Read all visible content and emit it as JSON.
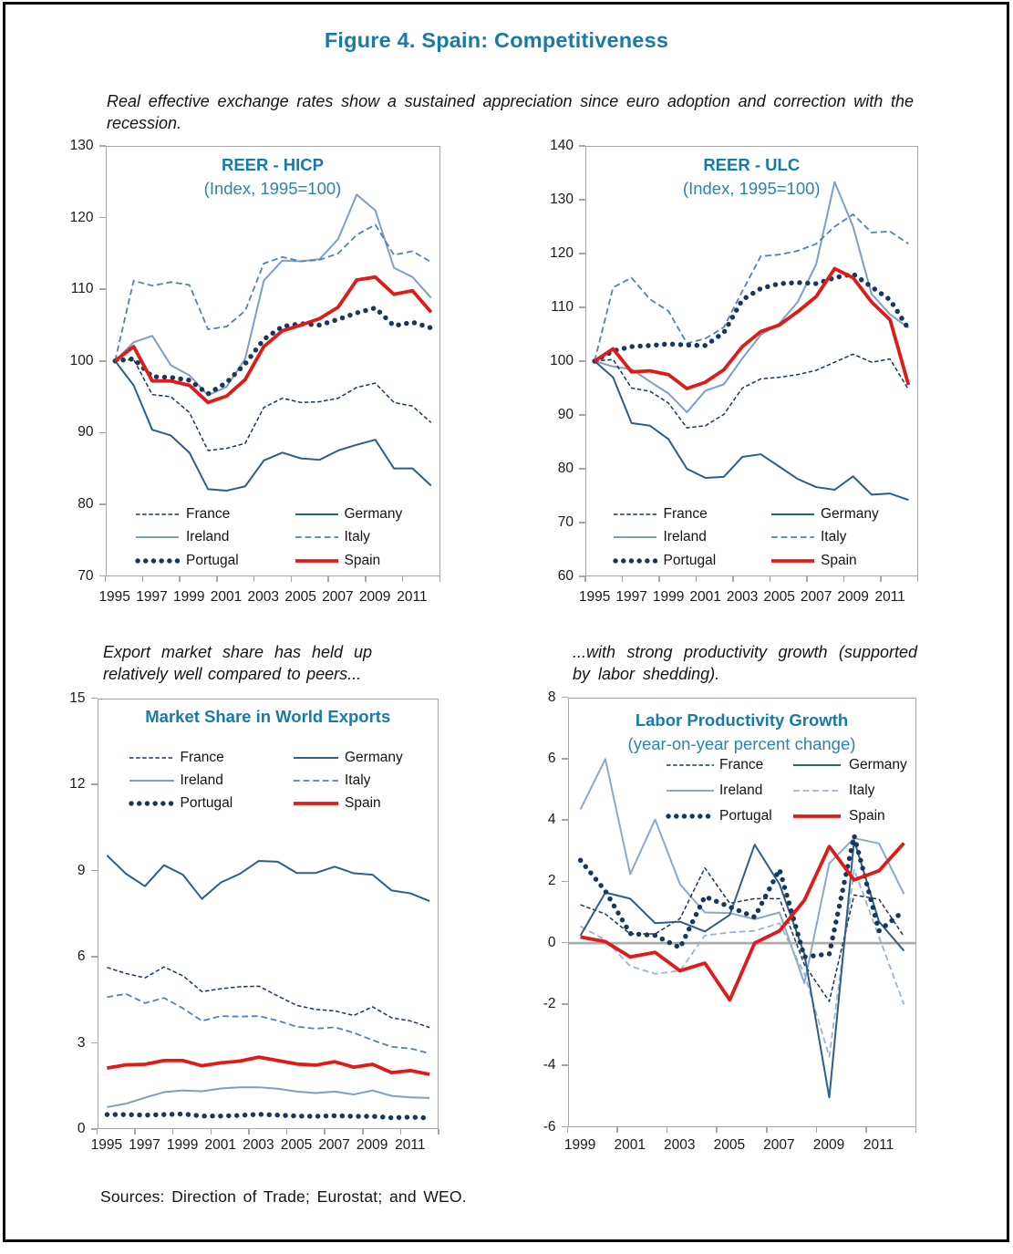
{
  "page": {
    "title": "Figure 4. Spain: Competitiveness",
    "captions": {
      "top": "Real effective exchange rates show a sustained appreciation since euro adoption and correction with the recession.",
      "exports": "Export market share has held up relatively well compared to peers...",
      "productivity": "...with strong productivity growth (supported by labor shedding)."
    },
    "sources": "Sources: Direction of Trade; Eurostat; and WEO.",
    "accent_color": "#187aa9",
    "frame_color": "#a6a6a6",
    "border_color": "#0a0a0a"
  },
  "legend_order": [
    "France",
    "Germany",
    "Ireland",
    "Italy",
    "Portugal",
    "Spain"
  ],
  "chart_data": [
    {
      "type": "line",
      "title": "REER - HICP",
      "subtitle": "(Index, 1995=100)",
      "x": [
        1995,
        1996,
        1997,
        1998,
        1999,
        2000,
        2001,
        2002,
        2003,
        2004,
        2005,
        2006,
        2007,
        2008,
        2009,
        2010,
        2011,
        2012
      ],
      "xtick_labels": [
        "1995",
        "1997",
        "1999",
        "2001",
        "2003",
        "2005",
        "2007",
        "2009",
        "2011"
      ],
      "ylim": [
        70,
        130
      ],
      "ytick_step": 10,
      "grid": false,
      "legend_position": "inside-bottom",
      "series": [
        {
          "name": "France",
          "color": "#17375e",
          "style": "fine-dash",
          "width": 1.5,
          "values": [
            100,
            100.2,
            95.3,
            95.0,
            92.8,
            87.5,
            87.8,
            88.5,
            93.5,
            94.8,
            94.2,
            94.3,
            94.8,
            96.3,
            96.9,
            94.2,
            93.7,
            91.4
          ]
        },
        {
          "name": "Germany",
          "color": "#2c5f88",
          "style": "solid",
          "width": 2,
          "values": [
            100,
            96.6,
            90.4,
            89.6,
            87.2,
            82.1,
            81.9,
            82.5,
            86.1,
            87.2,
            86.4,
            86.2,
            87.5,
            88.3,
            89.0,
            85.0,
            85.0,
            82.6
          ]
        },
        {
          "name": "Ireland",
          "color": "#7f9fc1",
          "style": "solid",
          "width": 2,
          "values": [
            100,
            102.6,
            103.5,
            99.4,
            98.0,
            95.2,
            96.4,
            100.3,
            111.2,
            114.0,
            113.9,
            114.2,
            117.0,
            123.2,
            121.0,
            113.0,
            111.7,
            108.8
          ]
        },
        {
          "name": "Italy",
          "color": "#4f81bd",
          "style": "dash",
          "width": 1.8,
          "values": [
            100,
            111.2,
            110.5,
            111.0,
            110.6,
            104.4,
            104.8,
            107.0,
            113.6,
            114.5,
            113.9,
            114.1,
            115.0,
            117.6,
            119.0,
            114.8,
            115.3,
            113.8
          ]
        },
        {
          "name": "Portugal",
          "color": "#17375e",
          "style": "dot",
          "width": 5.4,
          "values": [
            100,
            100.3,
            97.8,
            97.7,
            97.3,
            95.4,
            97.0,
            99.6,
            103.0,
            104.8,
            105.2,
            105.0,
            105.8,
            106.7,
            107.4,
            104.9,
            105.4,
            104.6
          ]
        },
        {
          "name": "Spain",
          "color": "#e01a16",
          "style": "solid",
          "width": 3.8,
          "values": [
            100,
            102.0,
            97.2,
            97.2,
            96.6,
            94.2,
            95.1,
            97.4,
            102.0,
            104.2,
            105.0,
            105.9,
            107.5,
            111.3,
            111.7,
            109.3,
            109.8,
            106.8
          ]
        }
      ]
    },
    {
      "type": "line",
      "title": "REER - ULC",
      "subtitle": "(Index, 1995=100)",
      "x": [
        1995,
        1996,
        1997,
        1998,
        1999,
        2000,
        2001,
        2002,
        2003,
        2004,
        2005,
        2006,
        2007,
        2008,
        2009,
        2010,
        2011,
        2012
      ],
      "xtick_labels": [
        "1995",
        "1997",
        "1999",
        "2001",
        "2003",
        "2005",
        "2007",
        "2009",
        "2011"
      ],
      "ylim": [
        60,
        140
      ],
      "ytick_step": 10,
      "grid": false,
      "legend_position": "inside-bottom",
      "series": [
        {
          "name": "France",
          "color": "#17375e",
          "style": "fine-dash",
          "width": 1.5,
          "values": [
            100,
            100.3,
            95.0,
            94.4,
            92.2,
            87.6,
            88.0,
            90.1,
            95.0,
            96.7,
            97.0,
            97.5,
            98.3,
            99.8,
            101.3,
            99.8,
            100.4,
            94.7
          ]
        },
        {
          "name": "Germany",
          "color": "#2c5f88",
          "style": "solid",
          "width": 2,
          "values": [
            100,
            97.0,
            88.5,
            88.0,
            85.5,
            80.0,
            78.3,
            78.5,
            82.2,
            82.7,
            80.4,
            78.1,
            76.6,
            76.1,
            78.6,
            75.2,
            75.4,
            74.2
          ]
        },
        {
          "name": "Ireland",
          "color": "#7f9fc1",
          "style": "solid",
          "width": 2,
          "values": [
            100,
            99.0,
            98.5,
            96.2,
            94.0,
            90.5,
            94.5,
            95.7,
            100.5,
            104.9,
            107.0,
            111.0,
            118.0,
            133.3,
            125.0,
            112.5,
            108.7,
            106.2
          ]
        },
        {
          "name": "Italy",
          "color": "#4f81bd",
          "style": "dash",
          "width": 1.8,
          "values": [
            100,
            113.7,
            115.5,
            111.5,
            109.3,
            103.3,
            104.2,
            106.3,
            113.0,
            119.5,
            119.8,
            120.5,
            121.8,
            125.0,
            127.3,
            123.9,
            124.1,
            121.8
          ]
        },
        {
          "name": "Portugal",
          "color": "#17375e",
          "style": "dot",
          "width": 5.4,
          "values": [
            100,
            101.9,
            102.7,
            102.9,
            103.2,
            103.0,
            102.9,
            105.3,
            111.4,
            113.5,
            114.4,
            114.6,
            114.4,
            115.5,
            116.2,
            113.8,
            111.4,
            106.0
          ]
        },
        {
          "name": "Spain",
          "color": "#e01a16",
          "style": "solid",
          "width": 3.8,
          "values": [
            100,
            102.3,
            98.0,
            98.2,
            97.5,
            94.9,
            96.1,
            98.4,
            102.7,
            105.5,
            106.7,
            109.2,
            112.0,
            117.2,
            115.5,
            111.0,
            107.7,
            95.6
          ]
        }
      ]
    },
    {
      "type": "line",
      "title": "Market Share in World Exports",
      "subtitle": "",
      "x": [
        1995,
        1996,
        1997,
        1998,
        1999,
        2000,
        2001,
        2002,
        2003,
        2004,
        2005,
        2006,
        2007,
        2008,
        2009,
        2010,
        2011,
        2012
      ],
      "xtick_labels": [
        "1995",
        "1997",
        "1999",
        "2001",
        "2003",
        "2005",
        "2007",
        "2009",
        "2011"
      ],
      "ylim": [
        0,
        15
      ],
      "ytick_step": 3,
      "grid": false,
      "legend_position": "inside-top",
      "series": [
        {
          "name": "France",
          "color": "#17375e",
          "style": "fine-dash",
          "width": 1.5,
          "values": [
            5.64,
            5.43,
            5.28,
            5.66,
            5.35,
            4.8,
            4.9,
            4.97,
            4.99,
            4.65,
            4.32,
            4.18,
            4.13,
            3.97,
            4.27,
            3.89,
            3.78,
            3.55
          ]
        },
        {
          "name": "Germany",
          "color": "#2c5f88",
          "style": "solid",
          "width": 2,
          "values": [
            9.54,
            8.9,
            8.47,
            9.2,
            8.87,
            8.03,
            8.6,
            8.9,
            9.35,
            9.32,
            8.93,
            8.93,
            9.15,
            8.92,
            8.87,
            8.32,
            8.22,
            7.95
          ]
        },
        {
          "name": "Ireland",
          "color": "#7f9fc1",
          "style": "solid",
          "width": 2,
          "values": [
            0.78,
            0.9,
            1.11,
            1.3,
            1.36,
            1.33,
            1.43,
            1.47,
            1.47,
            1.42,
            1.32,
            1.27,
            1.32,
            1.22,
            1.36,
            1.17,
            1.12,
            1.1
          ]
        },
        {
          "name": "Italy",
          "color": "#4f81bd",
          "style": "dash",
          "width": 1.8,
          "values": [
            4.61,
            4.72,
            4.4,
            4.58,
            4.22,
            3.78,
            3.95,
            3.93,
            3.95,
            3.79,
            3.58,
            3.51,
            3.56,
            3.37,
            3.11,
            2.88,
            2.82,
            2.65
          ]
        },
        {
          "name": "Portugal",
          "color": "#17375e",
          "style": "dot",
          "width": 5.4,
          "values": [
            0.52,
            0.52,
            0.5,
            0.52,
            0.54,
            0.47,
            0.47,
            0.49,
            0.53,
            0.5,
            0.47,
            0.46,
            0.48,
            0.46,
            0.46,
            0.41,
            0.43,
            0.4
          ]
        },
        {
          "name": "Spain",
          "color": "#e01a16",
          "style": "solid",
          "width": 3.8,
          "values": [
            2.14,
            2.25,
            2.27,
            2.4,
            2.4,
            2.22,
            2.32,
            2.38,
            2.52,
            2.4,
            2.28,
            2.24,
            2.36,
            2.17,
            2.27,
            1.98,
            2.05,
            1.92
          ]
        }
      ]
    },
    {
      "type": "line",
      "title": "Labor Productivity Growth",
      "subtitle": "(year-on-year percent change)",
      "x": [
        1999,
        2000,
        2001,
        2002,
        2003,
        2004,
        2005,
        2006,
        2007,
        2008,
        2009,
        2010,
        2011,
        2012
      ],
      "xtick_labels": [
        "1999",
        "2001",
        "2003",
        "2005",
        "2007",
        "2009",
        "2011"
      ],
      "ylim": [
        -6,
        8
      ],
      "ytick_step": 2,
      "grid": false,
      "zero_line": true,
      "legend_position": "inside-top",
      "series": [
        {
          "name": "France",
          "color": "#17375e",
          "style": "fine-dash",
          "width": 1.5,
          "values": [
            1.25,
            0.95,
            0.3,
            0.3,
            0.8,
            2.45,
            1.3,
            1.45,
            1.45,
            -0.7,
            -1.9,
            1.57,
            1.43,
            0.22
          ]
        },
        {
          "name": "Germany",
          "color": "#2c5f88",
          "style": "solid",
          "width": 2,
          "values": [
            0.25,
            1.65,
            1.45,
            0.65,
            0.7,
            0.38,
            0.92,
            3.21,
            1.92,
            -0.35,
            -5.03,
            3.35,
            0.7,
            -0.25
          ]
        },
        {
          "name": "Ireland",
          "color": "#8aa9c8",
          "style": "solid",
          "width": 2,
          "values": [
            4.36,
            6.0,
            2.25,
            4.03,
            1.92,
            1.0,
            0.98,
            0.78,
            1.0,
            -1.3,
            2.6,
            3.42,
            3.25,
            1.6
          ]
        },
        {
          "name": "Italy",
          "color": "#9ab3d2",
          "style": "dash",
          "width": 1.8,
          "values": [
            0.55,
            0.1,
            -0.75,
            -1.0,
            -0.9,
            0.25,
            0.35,
            0.4,
            0.65,
            -1.0,
            -3.7,
            2.4,
            0.2,
            -2.0
          ]
        },
        {
          "name": "Portugal",
          "color": "#17375e",
          "style": "dot",
          "width": 5.4,
          "values": [
            2.7,
            1.7,
            0.31,
            0.25,
            -0.15,
            1.52,
            1.18,
            0.85,
            2.4,
            -0.45,
            -0.35,
            3.5,
            0.4,
            1.05
          ]
        },
        {
          "name": "Spain",
          "color": "#e01a16",
          "style": "solid",
          "width": 3.8,
          "values": [
            0.2,
            0.05,
            -0.45,
            -0.3,
            -0.9,
            -0.65,
            -1.85,
            0.0,
            0.4,
            1.4,
            3.15,
            2.06,
            2.36,
            3.26
          ]
        }
      ]
    }
  ]
}
